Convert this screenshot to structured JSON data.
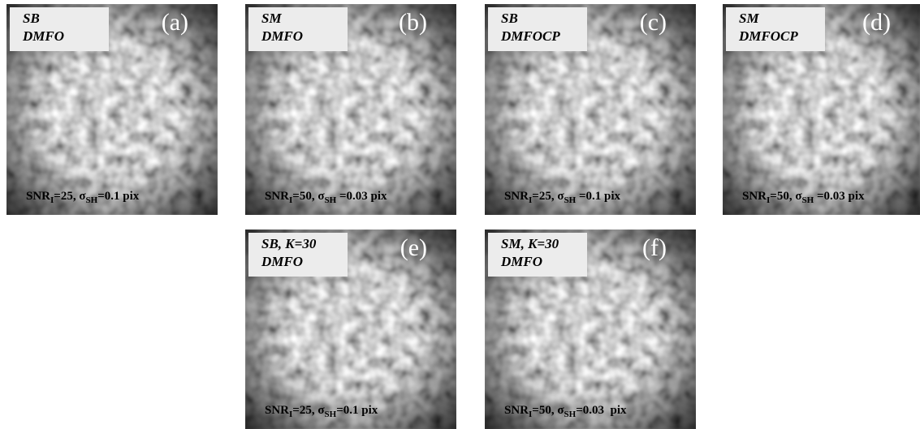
{
  "panels": [
    {
      "line1": "SB",
      "line2": "DMFO",
      "letter": "(a)",
      "snr": "SNR",
      "snr_sub": "I",
      "snr_value": "=25, ",
      "sigma": "σ",
      "sigma_sub": "SH",
      "sigma_value": "=0.1 pix"
    },
    {
      "line1": "SM",
      "line2": "DMFO",
      "letter": "(b)",
      "snr": "SNR",
      "snr_sub": "I",
      "snr_value": "=50, ",
      "sigma": "σ",
      "sigma_sub": "SH",
      "sigma_value": " =0.03 pix"
    },
    {
      "line1": "SB",
      "line2": "DMFOCP",
      "letter": "(c)",
      "snr": "SNR",
      "snr_sub": "I",
      "snr_value": "=25, ",
      "sigma": "σ",
      "sigma_sub": "SH",
      "sigma_value": " =0.1 pix"
    },
    {
      "line1": "SM",
      "line2": "DMFOCP",
      "letter": "(d)",
      "snr": "SNR",
      "snr_sub": "I",
      "snr_value": "=50, ",
      "sigma": "σ",
      "sigma_sub": "SH",
      "sigma_value": " =0.03 pix"
    },
    {
      "line1": "SB, K=30",
      "line2": "DMFO",
      "letter": "(e)",
      "snr": "SNR",
      "snr_sub": "I",
      "snr_value": "=25, ",
      "sigma": "σ",
      "sigma_sub": "SH",
      "sigma_value": "=0.1 pix"
    },
    {
      "line1": "SM, K=30",
      "line2": "DMFO",
      "letter": "(f)",
      "snr": "SNR",
      "snr_sub": "I",
      "snr_value": "=50, ",
      "sigma": "σ",
      "sigma_sub": "SH",
      "sigma_value": "=0.03  pix"
    }
  ]
}
